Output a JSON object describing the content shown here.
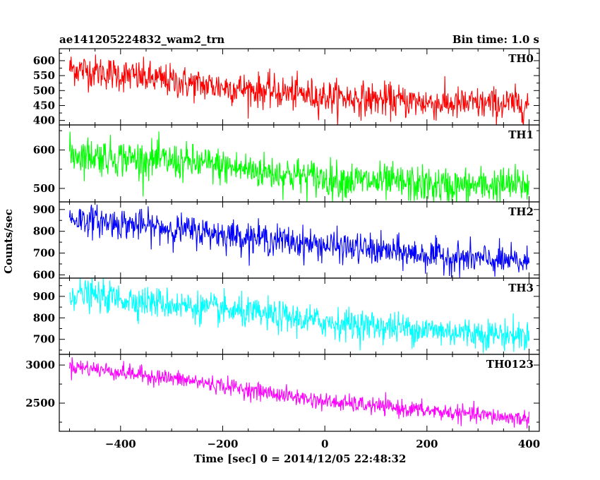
{
  "header": {
    "title": "ae141205224832_wam2_trn",
    "bin_time": "Bin time: 1.0 s"
  },
  "y_axis_label": "Counts/sec",
  "x_axis_label": "Time [sec] 0 = 2014/12/05 22:48:32",
  "x_ticks": [
    -400,
    -200,
    0,
    200,
    400
  ],
  "chart_data": [
    {
      "type": "line",
      "name": "TH0",
      "color": "#ff0000",
      "xlim": [
        -520,
        420
      ],
      "ylim": [
        385,
        640
      ],
      "yticks": [
        400,
        450,
        500,
        550,
        600
      ],
      "x_range": [
        -500,
        400
      ],
      "trend": [
        [
          -500,
          575
        ],
        [
          -250,
          520
        ],
        [
          0,
          480
        ],
        [
          250,
          455
        ],
        [
          400,
          455
        ]
      ],
      "noise": 28
    },
    {
      "type": "line",
      "name": "TH1",
      "color": "#00ff00",
      "xlim": [
        -520,
        420
      ],
      "ylim": [
        465,
        665
      ],
      "yticks": [
        500,
        600
      ],
      "x_range": [
        -500,
        400
      ],
      "trend": [
        [
          -500,
          590
        ],
        [
          -250,
          565
        ],
        [
          0,
          525
        ],
        [
          250,
          505
        ],
        [
          400,
          510
        ]
      ],
      "noise": 24
    },
    {
      "type": "line",
      "name": "TH2",
      "color": "#0000ff",
      "xlim": [
        -520,
        420
      ],
      "ylim": [
        585,
        935
      ],
      "yticks": [
        600,
        700,
        800,
        900
      ],
      "x_range": [
        -500,
        400
      ],
      "trend": [
        [
          -500,
          860
        ],
        [
          -250,
          800
        ],
        [
          0,
          735
        ],
        [
          250,
          680
        ],
        [
          400,
          655
        ]
      ],
      "noise": 35
    },
    {
      "type": "line",
      "name": "TH3",
      "color": "#00ffff",
      "xlim": [
        -520,
        420
      ],
      "ylim": [
        630,
        985
      ],
      "yticks": [
        700,
        800,
        900
      ],
      "x_range": [
        -500,
        400
      ],
      "trend": [
        [
          -500,
          915
        ],
        [
          -250,
          850
        ],
        [
          0,
          780
        ],
        [
          250,
          735
        ],
        [
          400,
          715
        ]
      ],
      "noise": 36
    },
    {
      "type": "line",
      "name": "TH0123",
      "color": "#ff00ff",
      "xlim": [
        -520,
        420
      ],
      "ylim": [
        2130,
        3140
      ],
      "yticks": [
        2500,
        3000
      ],
      "x_range": [
        -500,
        400
      ],
      "trend": [
        [
          -500,
          2990
        ],
        [
          -250,
          2780
        ],
        [
          0,
          2520
        ],
        [
          250,
          2370
        ],
        [
          400,
          2290
        ]
      ],
      "noise": 55
    }
  ]
}
